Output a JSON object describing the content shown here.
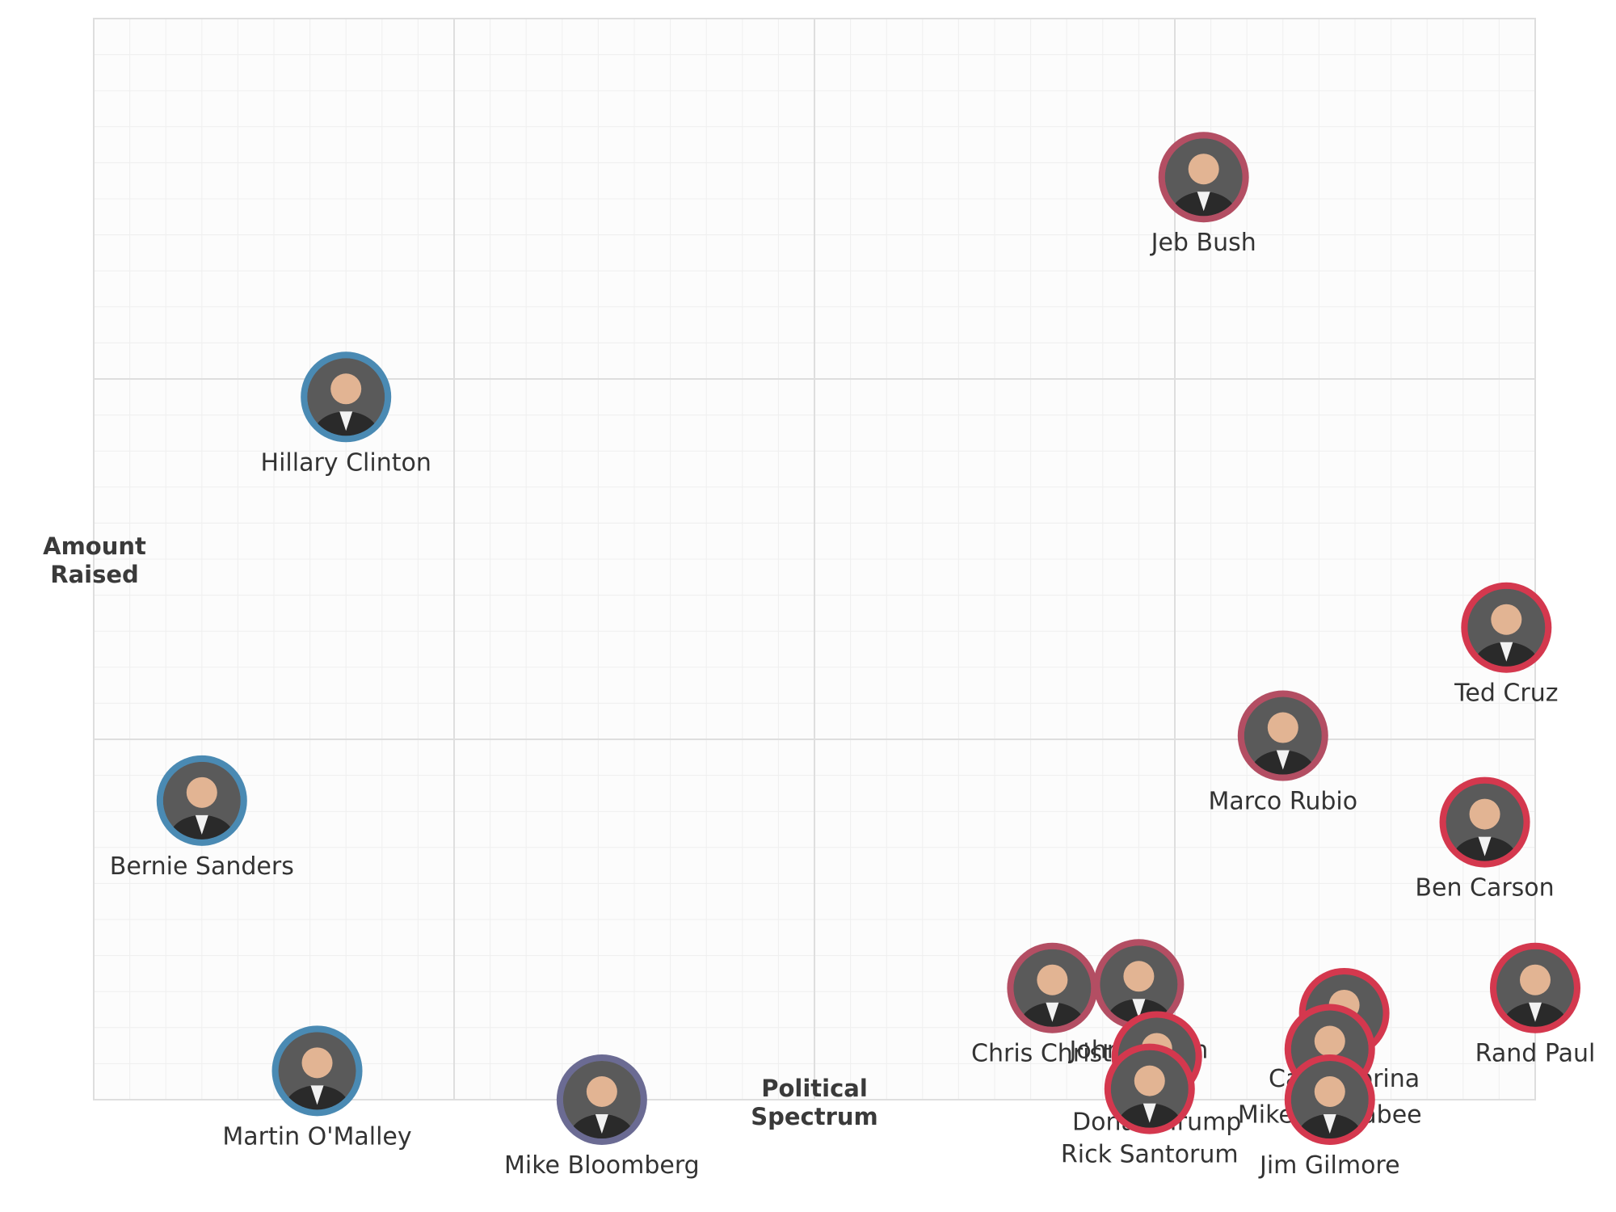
{
  "chart_data": {
    "type": "scatter",
    "title": "",
    "xlabel": "Political Spectrum",
    "ylabel": "Amount Raised",
    "xlim": [
      0,
      4
    ],
    "ylim": [
      0,
      3
    ],
    "grid": true,
    "legend": "none",
    "colors": {
      "democrat": "#4a8ab3",
      "independent": "#6b6b93",
      "republican": "#d4384e",
      "republican_muted": "#b34e63",
      "photo_fill": "#5a5a5a",
      "plot_bg": "#fcfcfc",
      "grid_major": "#dedede",
      "grid_minor": "#efefef"
    },
    "points": [
      {
        "name": "Jeb Bush",
        "x": 3.08,
        "y": 2.56,
        "party": "republican_muted"
      },
      {
        "name": "Hillary Clinton",
        "x": 0.7,
        "y": 1.95,
        "party": "democrat"
      },
      {
        "name": "Ted Cruz",
        "x": 3.92,
        "y": 1.31,
        "party": "republican"
      },
      {
        "name": "Marco Rubio",
        "x": 3.3,
        "y": 1.01,
        "party": "republican_muted"
      },
      {
        "name": "Bernie Sanders",
        "x": 0.3,
        "y": 0.83,
        "party": "democrat"
      },
      {
        "name": "Ben Carson",
        "x": 3.86,
        "y": 0.77,
        "party": "republican"
      },
      {
        "name": "Chris Christie",
        "x": 2.66,
        "y": 0.31,
        "party": "republican_muted"
      },
      {
        "name": "John Kasich",
        "x": 2.9,
        "y": 0.32,
        "party": "republican_muted"
      },
      {
        "name": "Rand Paul",
        "x": 4.0,
        "y": 0.31,
        "party": "republican"
      },
      {
        "name": "Carly Fiorina",
        "x": 3.47,
        "y": 0.24,
        "party": "republican"
      },
      {
        "name": "Donald Trump",
        "x": 2.95,
        "y": 0.12,
        "party": "republican"
      },
      {
        "name": "Mike Huckabee",
        "x": 3.43,
        "y": 0.14,
        "party": "republican"
      },
      {
        "name": "Martin O'Malley",
        "x": 0.62,
        "y": 0.08,
        "party": "democrat"
      },
      {
        "name": "Rick Santorum",
        "x": 2.93,
        "y": 0.03,
        "party": "republican"
      },
      {
        "name": "Mike Bloomberg",
        "x": 1.41,
        "y": 0.0,
        "party": "independent"
      },
      {
        "name": "Jim Gilmore",
        "x": 3.43,
        "y": 0.0,
        "party": "republican"
      }
    ]
  }
}
